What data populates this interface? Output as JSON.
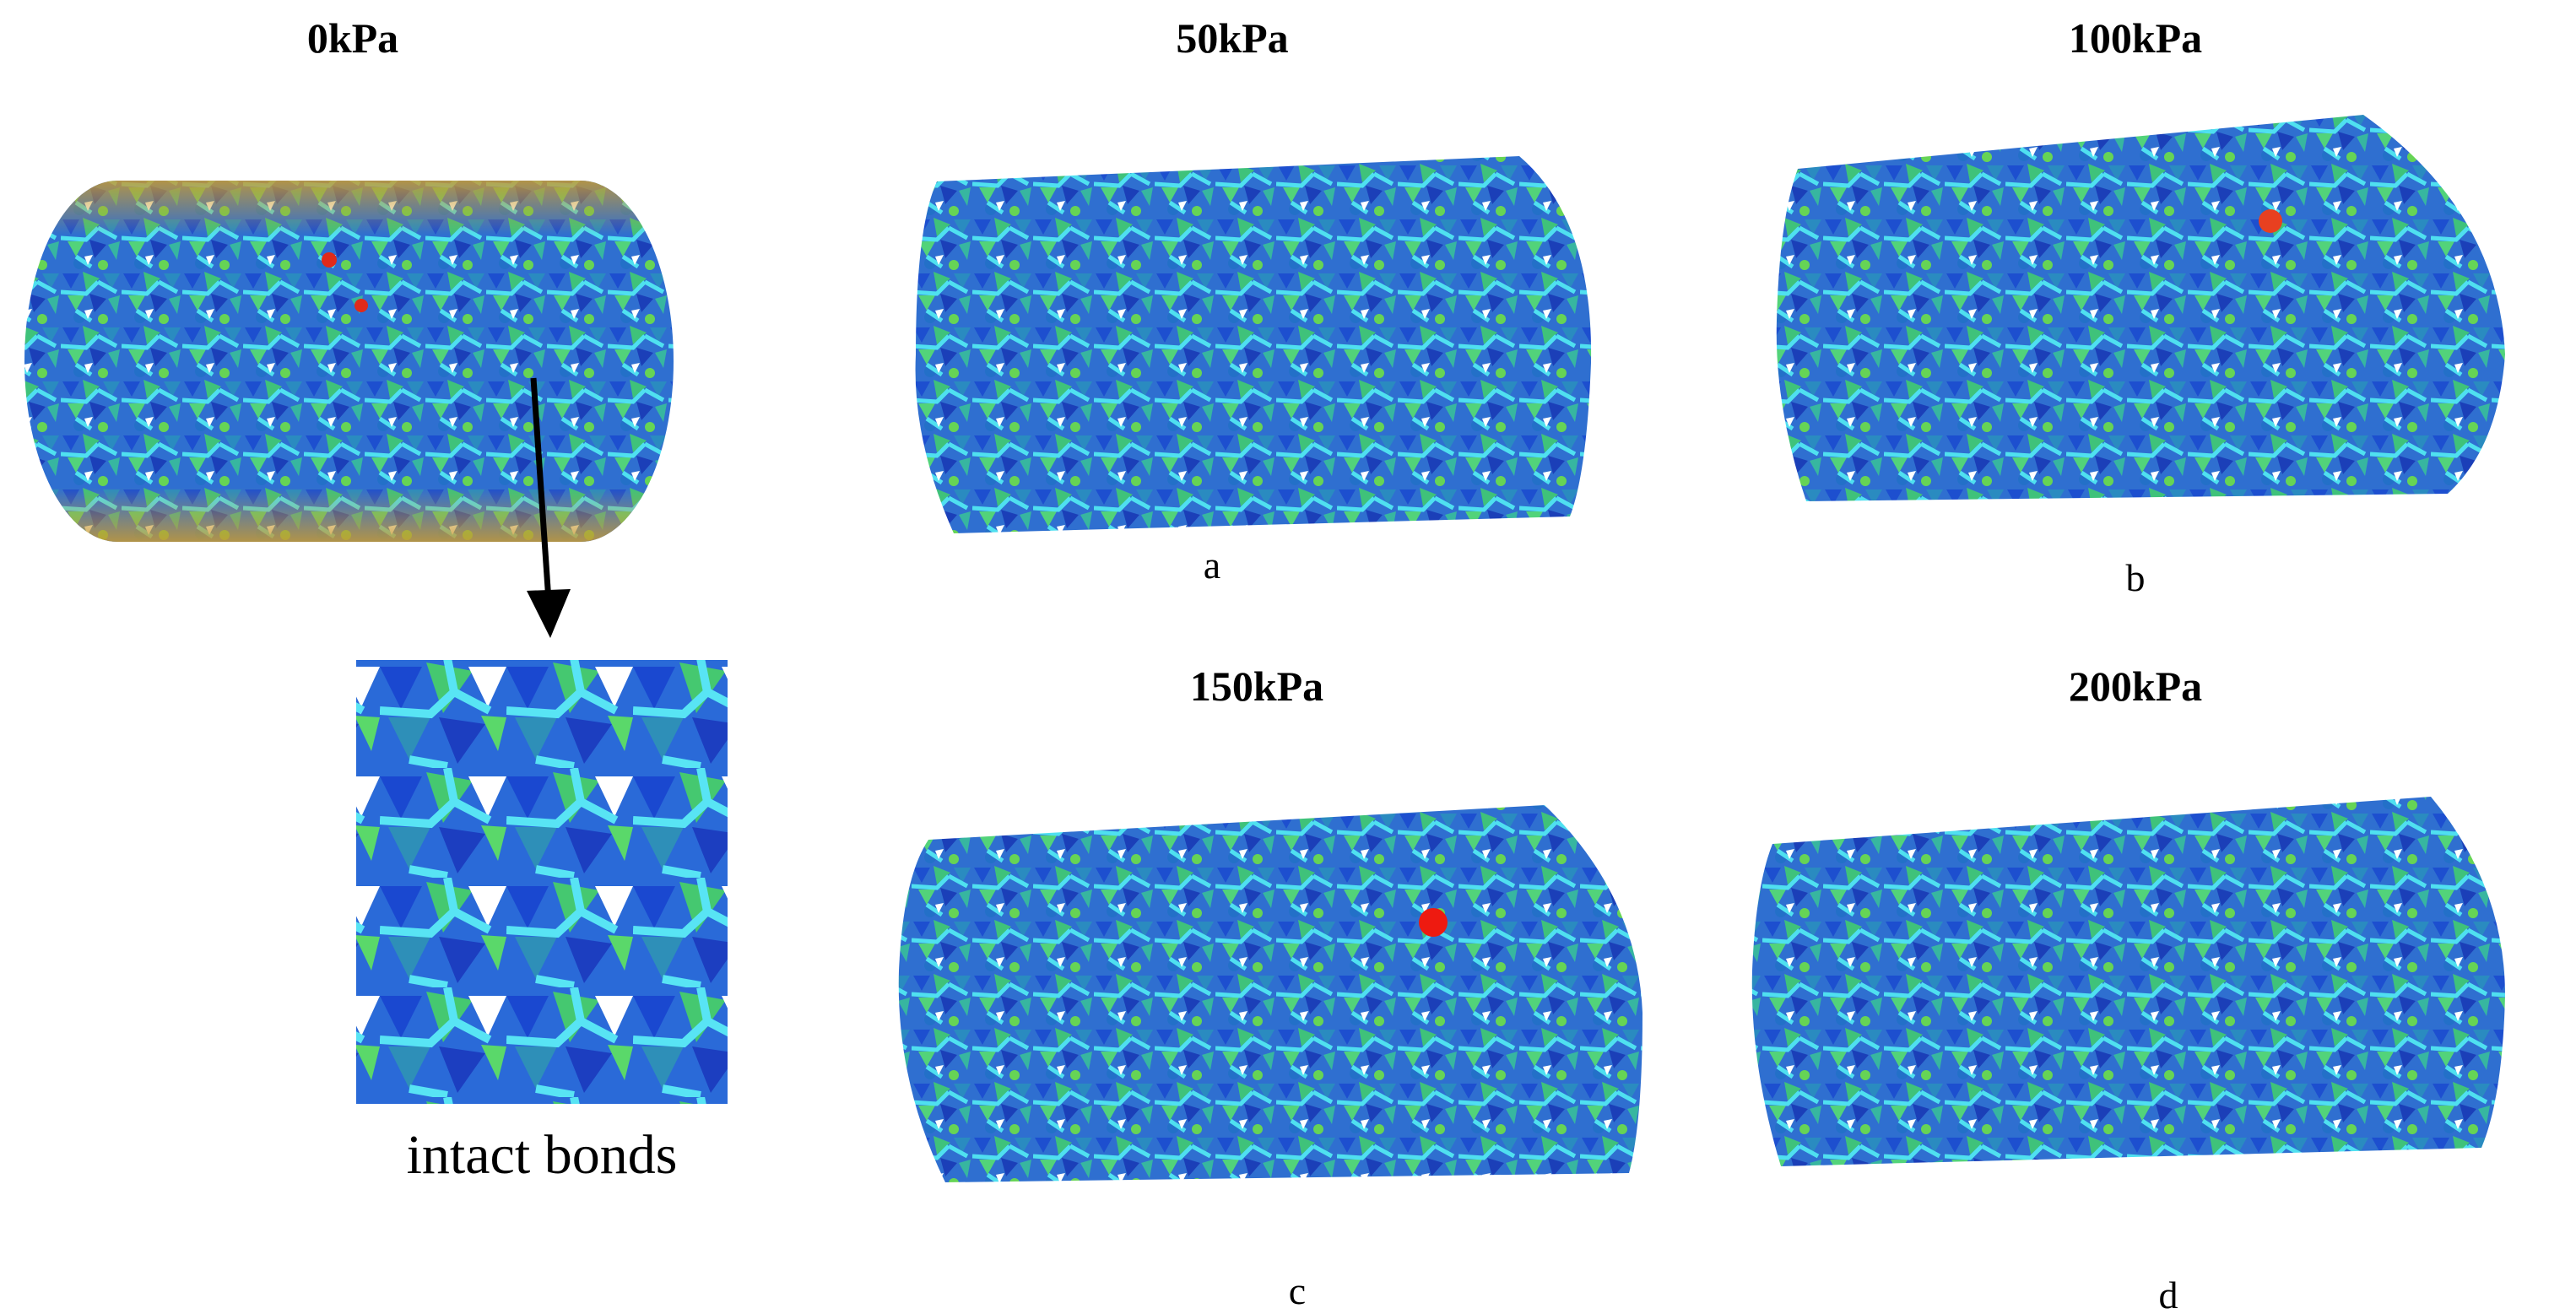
{
  "panels": [
    {
      "title": "0kPa"
    },
    {
      "title": "50kPa",
      "label": "a"
    },
    {
      "title": "100kPa",
      "label": "b"
    },
    {
      "title": "150kPa",
      "label": "c"
    },
    {
      "title": "200kPa",
      "label": "d"
    }
  ],
  "inset": {
    "caption": "intact bonds"
  }
}
